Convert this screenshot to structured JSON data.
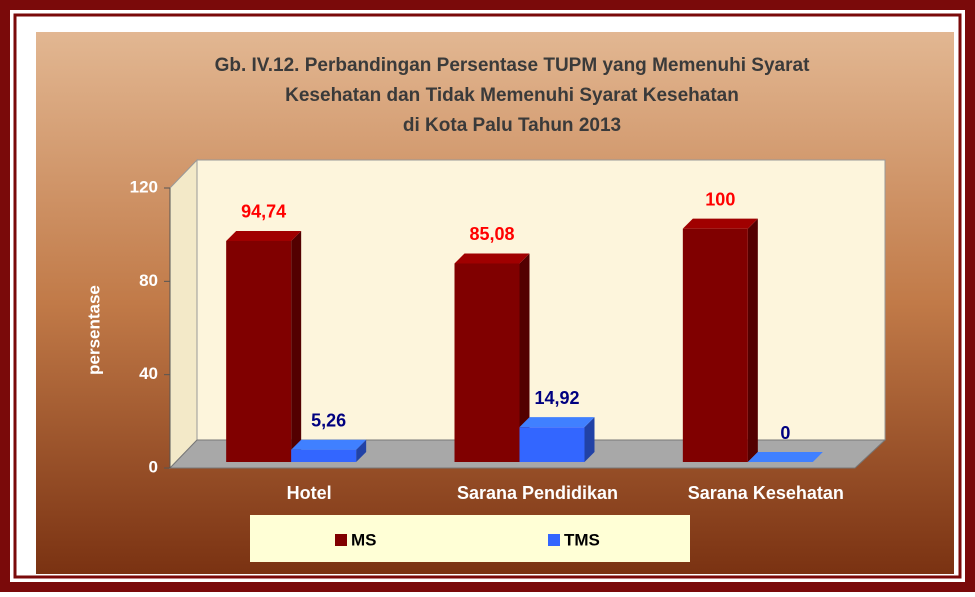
{
  "chart_data": {
    "type": "bar3d",
    "title": [
      "Gb. IV.12. Perbandingan Persentase TUPM yang Memenuhi Syarat",
      "Kesehatan dan Tidak Memenuhi Syarat Kesehatan",
      "di Kota Palu Tahun  2013"
    ],
    "y_label": "persentase",
    "categories": [
      "Hotel",
      "Sarana Pendidikan",
      "Sarana Kesehatan"
    ],
    "series": [
      {
        "name": "MS",
        "color": "#800000",
        "values": [
          94.74,
          85.08,
          100
        ],
        "value_labels": [
          "94,74",
          "85,08",
          "100"
        ],
        "label_color": "#ff0000"
      },
      {
        "name": "TMS",
        "color": "#3366ff",
        "values": [
          5.26,
          14.92,
          0
        ],
        "value_labels": [
          "5,26",
          "14,92",
          "0"
        ],
        "label_color": "#000080"
      }
    ],
    "ylim": [
      0,
      120
    ],
    "yticks": [
      0,
      40,
      80,
      120
    ]
  }
}
